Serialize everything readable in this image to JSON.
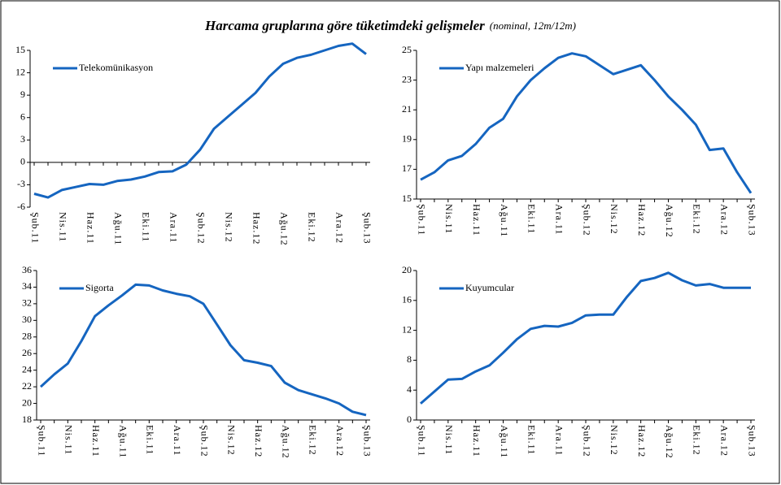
{
  "title": "Harcama gruplarına göre tüketimdeki gelişmeler",
  "subtitle": "(nominal, 12m/12m)",
  "chart_data": [
    {
      "type": "line",
      "categories": [
        "Şub.11",
        null,
        "Nis.11",
        null,
        "Haz.11",
        null,
        "Ağu.11",
        null,
        "Eki.11",
        null,
        "Ara.11",
        null,
        "Şub.12",
        null,
        "Nis.12",
        null,
        "Haz.12",
        null,
        "Ağu.12",
        null,
        "Eki.12",
        null,
        "Ara.12",
        null,
        "Şub.13"
      ],
      "series": [
        {
          "name": "Telekomünikasyon",
          "color": "#1565c0",
          "values": [
            -4.2,
            -4.7,
            -3.7,
            -3.3,
            -2.9,
            -3.0,
            -2.5,
            -2.3,
            -1.9,
            -1.3,
            -1.2,
            -0.3,
            1.7,
            4.5,
            6.1,
            7.7,
            9.3,
            11.5,
            13.2,
            14.0,
            14.4,
            15.0,
            15.6,
            15.9,
            14.5
          ]
        }
      ],
      "ylim": [
        -6,
        15
      ],
      "yticks": [
        -6,
        -3,
        0,
        3,
        6,
        9,
        12,
        15
      ]
    },
    {
      "type": "line",
      "categories": [
        "Şub.11",
        null,
        "Nis.11",
        null,
        "Haz.11",
        null,
        "Ağu.11",
        null,
        "Eki.11",
        null,
        "Ara.11",
        null,
        "Şub.12",
        null,
        "Nis.12",
        null,
        "Haz.12",
        null,
        "Ağu.12",
        null,
        "Eki.12",
        null,
        "Ara.12",
        null,
        "Şub.13"
      ],
      "series": [
        {
          "name": "Yapı malzemeleri",
          "color": "#1565c0",
          "values": [
            16.3,
            16.8,
            17.6,
            17.9,
            18.7,
            19.8,
            20.4,
            21.9,
            23.0,
            23.8,
            24.5,
            24.8,
            24.6,
            24.0,
            23.4,
            23.7,
            24.0,
            23.0,
            21.9,
            21.0,
            20.0,
            18.3,
            18.4,
            16.8,
            15.4
          ]
        }
      ],
      "ylim": [
        15,
        25
      ],
      "yticks": [
        15,
        17,
        19,
        21,
        23,
        25
      ]
    },
    {
      "type": "line",
      "categories": [
        "Şub.11",
        null,
        "Nis.11",
        null,
        "Haz.11",
        null,
        "Ağu.11",
        null,
        "Eki.11",
        null,
        "Ara.11",
        null,
        "Şub.12",
        null,
        "Nis.12",
        null,
        "Haz.12",
        null,
        "Ağu.12",
        null,
        "Eki.12",
        null,
        "Ara.12",
        null,
        "Şub.13"
      ],
      "series": [
        {
          "name": "Sigorta",
          "color": "#1565c0",
          "values": [
            22.0,
            23.5,
            24.8,
            27.5,
            30.5,
            31.8,
            33.0,
            34.3,
            34.2,
            33.6,
            33.2,
            32.9,
            32.0,
            29.5,
            27.0,
            25.2,
            24.9,
            24.5,
            22.5,
            21.6,
            21.1,
            20.6,
            20.0,
            19.0,
            18.6
          ]
        }
      ],
      "ylim": [
        18,
        36
      ],
      "yticks": [
        18,
        20,
        22,
        24,
        26,
        28,
        30,
        32,
        34,
        36
      ]
    },
    {
      "type": "line",
      "categories": [
        "Şub.11",
        null,
        "Nis.11",
        null,
        "Haz.11",
        null,
        "Ağu.11",
        null,
        "Eki.11",
        null,
        "Ara.11",
        null,
        "Şub.12",
        null,
        "Nis.12",
        null,
        "Haz.12",
        null,
        "Ağu.12",
        null,
        "Eki.12",
        null,
        "Ara.12",
        null,
        "Şub.13"
      ],
      "series": [
        {
          "name": "Kuyumcular",
          "color": "#1565c0",
          "values": [
            2.2,
            3.8,
            5.4,
            5.5,
            6.5,
            7.3,
            9.0,
            10.8,
            12.2,
            12.6,
            12.5,
            13.0,
            14.0,
            14.1,
            14.1,
            16.5,
            18.6,
            19.0,
            19.7,
            18.7,
            18.0,
            18.2,
            17.7,
            17.7,
            17.7
          ]
        }
      ],
      "ylim": [
        0,
        20
      ],
      "yticks": [
        0,
        4,
        8,
        12,
        16,
        20
      ]
    }
  ]
}
